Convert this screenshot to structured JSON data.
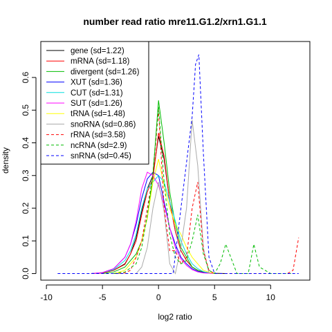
{
  "chart_data": {
    "type": "line",
    "title": "number read ratio mre11.G1.2/xrn1.G1.1",
    "xlabel": "log2 ratio",
    "ylabel": "density",
    "xlim": [
      -10.5,
      13.5
    ],
    "ylim": [
      -0.02,
      0.71
    ],
    "x_ticks": [
      -10,
      -5,
      0,
      5,
      10
    ],
    "y_ticks": [
      0.0,
      0.1,
      0.2,
      0.3,
      0.4,
      0.5,
      0.6
    ],
    "grid": false,
    "legend_position": "top-left",
    "series": [
      {
        "name": "gene (sd=1.22)",
        "color": "#000000",
        "dash": false,
        "x": [
          -6,
          -5,
          -4,
          -3,
          -2.5,
          -2,
          -1.5,
          -1,
          -0.5,
          0,
          0.5,
          1,
          1.5,
          2,
          2.5,
          3,
          3.5,
          4,
          5,
          6
        ],
        "y": [
          0,
          0.002,
          0.01,
          0.03,
          0.06,
          0.11,
          0.19,
          0.26,
          0.3,
          0.42,
          0.35,
          0.22,
          0.13,
          0.07,
          0.04,
          0.02,
          0.01,
          0.005,
          0.001,
          0
        ]
      },
      {
        "name": "mRNA (sd=1.18)",
        "color": "#ff0000",
        "dash": false,
        "x": [
          -6,
          -5,
          -4,
          -3,
          -2.5,
          -2,
          -1.5,
          -1,
          -0.5,
          0,
          0.5,
          1,
          1.5,
          2,
          2.5,
          3,
          3.5,
          4,
          5
        ],
        "y": [
          0,
          0.002,
          0.01,
          0.028,
          0.06,
          0.1,
          0.18,
          0.25,
          0.29,
          0.43,
          0.36,
          0.22,
          0.13,
          0.07,
          0.04,
          0.02,
          0.01,
          0.005,
          0
        ]
      },
      {
        "name": "divergent (sd=1.26)",
        "color": "#00bb00",
        "dash": false,
        "x": [
          -5,
          -4,
          -3,
          -2,
          -1.5,
          -1,
          -0.5,
          0,
          0.5,
          1,
          1.5,
          2,
          2.5,
          3,
          3.5,
          4,
          5
        ],
        "y": [
          0,
          0.005,
          0.02,
          0.06,
          0.1,
          0.17,
          0.3,
          0.53,
          0.4,
          0.25,
          0.15,
          0.08,
          0.05,
          0.02,
          0.01,
          0.004,
          0
        ]
      },
      {
        "name": "XUT (sd=1.36)",
        "color": "#0000ff",
        "dash": false,
        "x": [
          -6,
          -5,
          -4,
          -3,
          -2.5,
          -2,
          -1.5,
          -1,
          -0.5,
          0,
          0.5,
          1,
          1.5,
          2,
          2.5,
          3,
          3.5,
          4,
          5
        ],
        "y": [
          0,
          0.003,
          0.015,
          0.05,
          0.09,
          0.15,
          0.23,
          0.29,
          0.31,
          0.3,
          0.22,
          0.14,
          0.09,
          0.05,
          0.03,
          0.015,
          0.007,
          0.003,
          0
        ]
      },
      {
        "name": "CUT (sd=1.31)",
        "color": "#00dddd",
        "dash": false,
        "x": [
          -6,
          -5,
          -4,
          -3,
          -2.5,
          -2,
          -1.5,
          -1,
          -0.5,
          0,
          0.5,
          1,
          1.5,
          2,
          2.5,
          3,
          3.5,
          4,
          4.5,
          5
        ],
        "y": [
          0,
          0.003,
          0.012,
          0.04,
          0.07,
          0.12,
          0.2,
          0.26,
          0.28,
          0.3,
          0.28,
          0.22,
          0.16,
          0.1,
          0.06,
          0.03,
          0.015,
          0.006,
          0.002,
          0
        ]
      },
      {
        "name": "SUT (sd=1.26)",
        "color": "#ff00ff",
        "dash": false,
        "x": [
          -6,
          -5,
          -4,
          -3,
          -2.5,
          -2,
          -1.5,
          -1,
          -0.5,
          0,
          0.5,
          1,
          1.5,
          2,
          2.5,
          3,
          3.5,
          4,
          5
        ],
        "y": [
          0,
          0.003,
          0.015,
          0.05,
          0.09,
          0.16,
          0.26,
          0.31,
          0.3,
          0.27,
          0.21,
          0.14,
          0.08,
          0.045,
          0.025,
          0.012,
          0.005,
          0.002,
          0
        ]
      },
      {
        "name": "tRNA (sd=1.48)",
        "color": "#ffff00",
        "dash": false,
        "x": [
          -4,
          -3,
          -2,
          -1.5,
          -1,
          -0.5,
          0,
          0.5,
          1,
          1.5,
          2,
          2.5,
          3,
          3.5,
          4,
          4.5,
          5
        ],
        "y": [
          0,
          0.01,
          0.05,
          0.1,
          0.17,
          0.28,
          0.35,
          0.27,
          0.2,
          0.15,
          0.12,
          0.08,
          0.05,
          0.03,
          0.01,
          0.004,
          0
        ]
      },
      {
        "name": "snoRNA (sd=0.86)",
        "color": "#aaaaaa",
        "dash": false,
        "x": [
          -2,
          -1.5,
          -1,
          -0.5,
          0,
          0.5,
          1,
          1.5,
          2,
          2.5,
          3,
          3.5,
          4,
          4.5
        ],
        "y": [
          0,
          0.02,
          0.08,
          0.2,
          0.28,
          0.19,
          0.03,
          0,
          0.08,
          0.2,
          0.47,
          0.33,
          0.08,
          0
        ]
      },
      {
        "name": "rRNA (sd=3.58)",
        "color": "#ff0000",
        "dash": true,
        "x": [
          -4,
          -3,
          -2.5,
          -2,
          -1.5,
          -1,
          -0.5,
          0,
          0.5,
          1,
          1.5,
          2,
          2.5,
          3,
          3.5,
          4,
          4.5,
          5,
          6,
          8,
          10,
          11.5,
          12,
          12.5
        ],
        "y": [
          0,
          0.002,
          0.01,
          0.05,
          0.1,
          0.2,
          0.3,
          0.5,
          0.2,
          0.07,
          0.07,
          0.03,
          0.05,
          0.2,
          0.28,
          0.07,
          0.01,
          0,
          0,
          0,
          0,
          0,
          0.01,
          0.11
        ]
      },
      {
        "name": "ncRNA (sd=2.9)",
        "color": "#00bb00",
        "dash": true,
        "x": [
          -4,
          -3,
          -2,
          -1.5,
          -1,
          -0.5,
          0,
          0.5,
          1,
          1.5,
          2,
          2.5,
          3,
          3.5,
          4,
          4.5,
          5,
          5.5,
          6,
          7,
          8,
          8.5,
          9,
          10,
          12
        ],
        "y": [
          0,
          0.005,
          0.03,
          0.08,
          0.18,
          0.31,
          0.51,
          0.28,
          0.12,
          0.05,
          0.03,
          0.04,
          0.1,
          0.18,
          0.06,
          0.01,
          0,
          0.03,
          0.09,
          0,
          0,
          0.09,
          0.02,
          0,
          0
        ]
      },
      {
        "name": "snRNA (sd=0.45)",
        "color": "#0000ff",
        "dash": true,
        "x": [
          -9,
          -5,
          0,
          1,
          1.3,
          2,
          2.5,
          3,
          3.3,
          3.6,
          4,
          4.5,
          5,
          7,
          10,
          12.5
        ],
        "y": [
          0,
          0,
          0,
          0,
          0,
          0.2,
          0.34,
          0.48,
          0.64,
          0.67,
          0.37,
          0.05,
          0,
          0,
          0,
          0
        ]
      }
    ]
  }
}
